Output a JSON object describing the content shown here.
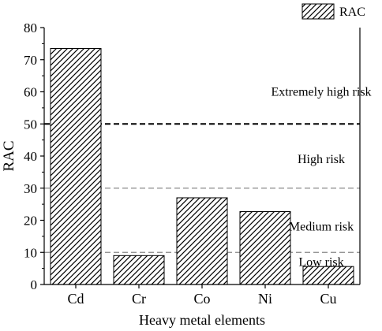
{
  "chart_data": {
    "type": "bar",
    "categories": [
      "Cd",
      "Cr",
      "Co",
      "Ni",
      "Cu"
    ],
    "series": [
      {
        "name": "RAC",
        "values": [
          73.5,
          9.0,
          27.0,
          22.7,
          5.6
        ]
      }
    ],
    "xlabel": "Heavy metal elements",
    "ylabel": "RAC",
    "ylim": [
      0,
      80
    ],
    "yticks": [
      0,
      10,
      20,
      30,
      40,
      50,
      60,
      70,
      80
    ],
    "grid": false,
    "legend": {
      "position": "top-right",
      "entries": [
        "RAC"
      ],
      "pattern": "diagonal-hatch"
    },
    "reference_lines": [
      {
        "value": 50,
        "style": "dashed",
        "weight": "bold"
      },
      {
        "value": 30,
        "style": "dashed",
        "weight": "light"
      },
      {
        "value": 10,
        "style": "dashed",
        "weight": "light"
      }
    ],
    "annotations": [
      {
        "text": "Extremely high risk",
        "y": 60
      },
      {
        "text": "High risk",
        "y": 39
      },
      {
        "text": "Medium risk",
        "y": 18
      },
      {
        "text": "Low risk",
        "y": 7
      }
    ],
    "colors": {
      "bar_fill": "#ffffff",
      "bar_stroke": "#000000",
      "hatch": "#000000"
    }
  }
}
